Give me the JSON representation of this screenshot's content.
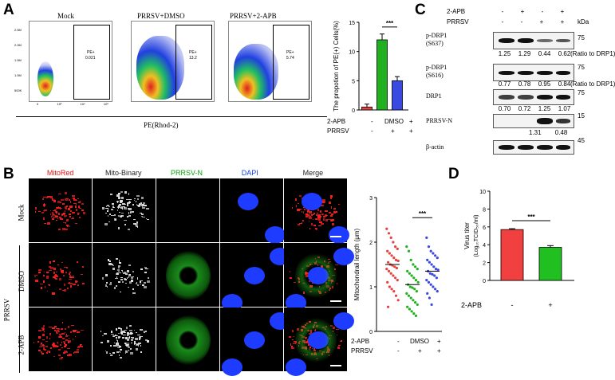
{
  "panels": {
    "a": "A",
    "b": "B",
    "c": "C",
    "d": "D"
  },
  "facs": {
    "titles": [
      "Mock",
      "PRRSV+DMSO",
      "PRRSV+2-APB"
    ],
    "gate_label": "PE+",
    "gate_values": [
      "0.021",
      "13.2",
      "5.74"
    ],
    "y_ticks": [
      "2.5M",
      "2.0M",
      "1.5M",
      "1.0M",
      "500K",
      "0"
    ],
    "x_ticks": [
      "0",
      "10³",
      "10⁴",
      "10⁵"
    ],
    "xlabel": "PE(Rhod-2)"
  },
  "treatment_rows": {
    "apb_label": "2-APB",
    "prrsv_label": "PRRSV",
    "apb_values": [
      "-",
      "DMSO",
      "+"
    ],
    "prrsv_values": [
      "-",
      "+",
      "+"
    ]
  },
  "western": {
    "header_apb": "2-APB",
    "header_prrsv": "PRRSV",
    "apb_signs": [
      "-",
      "+",
      "-",
      "+"
    ],
    "prrsv_signs": [
      "-",
      "-",
      "+",
      "+"
    ],
    "kda": "kDa",
    "rows": [
      {
        "label": "p-DRP1",
        "sublabel": "(S637)",
        "mw": "75",
        "ratios": [
          "1.25",
          "1.29",
          "0.44",
          "0.62"
        ],
        "ratio_note": "(Ratio to DRP1)"
      },
      {
        "label": "p-DRP1",
        "sublabel": "(S616)",
        "mw": "75",
        "ratios": [
          "0.77",
          "0.78",
          "0.95",
          "0.84"
        ],
        "ratio_note": "(Ratio to DRP1)"
      },
      {
        "label": "DRP1",
        "sublabel": "",
        "mw": "75",
        "ratios": [
          "0.70",
          "0.72",
          "1.25",
          "1.07"
        ],
        "ratio_note": ""
      },
      {
        "label": "PRRSV-N",
        "sublabel": "",
        "mw": "15",
        "ratios": [
          "",
          "",
          "1.31",
          "0.48"
        ],
        "ratio_note": ""
      },
      {
        "label": "β-actin",
        "sublabel": "",
        "mw": "45",
        "ratios": [
          "",
          "",
          "",
          ""
        ],
        "ratio_note": ""
      }
    ]
  },
  "microscopy": {
    "columns": [
      "MitoRed",
      "Mito-Binary",
      "PRRSV-N",
      "DAPI",
      "Merge"
    ],
    "column_colors": [
      "#e01010",
      "#222222",
      "#10a010",
      "#1040e0",
      "#222222"
    ],
    "rows": [
      "Mock",
      "DMSO",
      "2-APB"
    ],
    "group_label": "PRRSV"
  },
  "chart_data": [
    {
      "type": "bar",
      "categories": [
        "Mock",
        "DMSO",
        "2-APB"
      ],
      "values": [
        0.5,
        12.0,
        5.0
      ],
      "errors": [
        0.5,
        1.0,
        0.7
      ],
      "colors": [
        "#e84040",
        "#20b020",
        "#3a4ae0"
      ],
      "ylabel": "The propotion of PE(+) Cells(%)",
      "ylim": [
        0,
        15
      ],
      "yticks": [
        "0",
        "5",
        "10",
        "15"
      ],
      "significance": "***"
    },
    {
      "type": "scatter",
      "categories": [
        "Mock",
        "DMSO",
        "2-APB"
      ],
      "colors": [
        "#e84040",
        "#20b020",
        "#3a4ae0"
      ],
      "means": [
        1.5,
        1.05,
        1.35
      ],
      "points": [
        [
          2.3,
          2.2,
          2.1,
          2.0,
          1.9,
          1.85,
          1.8,
          1.75,
          1.7,
          1.65,
          1.6,
          1.58,
          1.55,
          1.5,
          1.48,
          1.45,
          1.42,
          1.4,
          1.35,
          1.3,
          1.25,
          1.2,
          1.15,
          1.1,
          1.0,
          0.95,
          0.9,
          0.8,
          0.7,
          0.55
        ],
        [
          1.9,
          1.8,
          1.6,
          1.5,
          1.45,
          1.4,
          1.35,
          1.3,
          1.25,
          1.2,
          1.15,
          1.1,
          1.05,
          1.0,
          0.98,
          0.95,
          0.9,
          0.85,
          0.8,
          0.75,
          0.7,
          0.65,
          0.6,
          0.55,
          0.5,
          0.45,
          0.4,
          0.35
        ],
        [
          2.1,
          1.9,
          1.8,
          1.75,
          1.7,
          1.65,
          1.6,
          1.55,
          1.5,
          1.45,
          1.4,
          1.38,
          1.35,
          1.3,
          1.28,
          1.25,
          1.2,
          1.15,
          1.1,
          1.05,
          1.0,
          0.95,
          0.9,
          0.85,
          0.75,
          0.6
        ]
      ],
      "ylabel": "Mitochondrail length (μm)",
      "ylim": [
        0,
        3
      ],
      "yticks": [
        "0",
        "1",
        "2",
        "3"
      ],
      "significance": "***"
    },
    {
      "type": "bar",
      "categories": [
        "-",
        "+"
      ],
      "values": [
        5.7,
        3.7
      ],
      "errors": [
        0.1,
        0.2
      ],
      "colors": [
        "#f04040",
        "#20c020"
      ],
      "ylabel": "Virus titer",
      "ylabel2": "(Log₁₀TCID₅₀/ml)",
      "xlabel": "2-APB",
      "ylim": [
        0,
        10
      ],
      "yticks": [
        "0",
        "2",
        "4",
        "6",
        "8",
        "10"
      ],
      "significance": "***"
    }
  ]
}
